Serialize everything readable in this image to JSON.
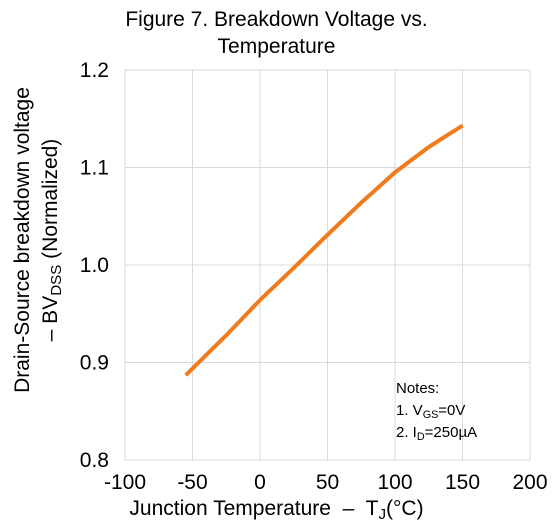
{
  "chart_data": {
    "type": "line",
    "title_lines": [
      "Figure 7. Breakdown Voltage vs.",
      "Temperature"
    ],
    "xlabel": {
      "main": "Junction Temperature  –  T",
      "sub": "J",
      "after": "(°C)"
    },
    "ylabel": {
      "line1": "Drain-Source breakdown voltage",
      "line2_pre": "– BV",
      "line2_sub": "DSS",
      "line2_post": " (Normalized)"
    },
    "xlim": [
      -100,
      200
    ],
    "ylim": [
      0.8,
      1.2
    ],
    "xticks": [
      "-100",
      "-50",
      "0",
      "50",
      "100",
      "150",
      "200"
    ],
    "yticks": [
      "0.8",
      "0.9",
      "1.0",
      "1.1",
      "1.2"
    ],
    "grid": true,
    "series": [
      {
        "color": "#f07b1d",
        "x": [
          -55,
          -25,
          0,
          25,
          50,
          75,
          100,
          125,
          150
        ],
        "y": [
          0.887,
          0.928,
          0.964,
          0.997,
          1.031,
          1.064,
          1.095,
          1.121,
          1.143
        ]
      }
    ],
    "notes": {
      "heading": "Notes:",
      "note1": {
        "pre": "1. V",
        "sub": "GS",
        "post": "=0V"
      },
      "note2": {
        "pre": "2. I",
        "sub": "D",
        "post": "=250µA"
      }
    }
  }
}
